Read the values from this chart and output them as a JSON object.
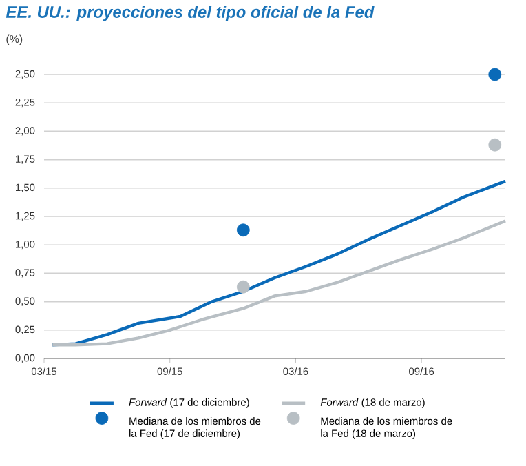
{
  "chart_data": {
    "type": "line",
    "title": "EE. UU.: proyecciones del tipo oficial de la Fed",
    "ylabel": "(%)",
    "xlim": [
      "2015-03-01",
      "2017-01-01"
    ],
    "xticks": [
      {
        "value": "2015-03-01",
        "label": "03/15"
      },
      {
        "value": "2015-09-01",
        "label": "09/15"
      },
      {
        "value": "2016-03-01",
        "label": "03/16"
      },
      {
        "value": "2016-09-01",
        "label": "09/16"
      }
    ],
    "ylim": [
      0,
      2.5
    ],
    "yticks": [
      {
        "value": 0,
        "label": "0,00"
      },
      {
        "value": 0.25,
        "label": "0,25"
      },
      {
        "value": 0.5,
        "label": "0,50"
      },
      {
        "value": 0.75,
        "label": "0,75"
      },
      {
        "value": 1,
        "label": "1,00"
      },
      {
        "value": 1.25,
        "label": "1,25"
      },
      {
        "value": 1.5,
        "label": "1,50"
      },
      {
        "value": 1.75,
        "label": "1,75"
      },
      {
        "value": 2,
        "label": "2,00"
      },
      {
        "value": 2.25,
        "label": "2,25"
      },
      {
        "value": 2.5,
        "label": "2,50"
      }
    ],
    "grid": "y",
    "legend": "bottom",
    "series": [
      {
        "name": "*Forward* (17 de diciembre)",
        "color": "#0a6ab8",
        "x": [
          "2015-03-13",
          "2015-04-16",
          "2015-06-01",
          "2015-07-16",
          "2015-09-16",
          "2015-11-01",
          "2015-12-16",
          "2016-02-01",
          "2016-03-16",
          "2016-05-01",
          "2016-06-16",
          "2016-08-01",
          "2016-09-16",
          "2016-11-01",
          "2017-01-01"
        ],
        "values": [
          0.12,
          0.13,
          0.21,
          0.31,
          0.37,
          0.5,
          0.59,
          0.71,
          0.81,
          0.92,
          1.05,
          1.17,
          1.29,
          1.42,
          1.56
        ]
      },
      {
        "name": "*Forward* (18 de marzo)",
        "color": "#b8bfc4",
        "x": [
          "2015-03-13",
          "2015-04-16",
          "2015-06-01",
          "2015-07-16",
          "2015-09-01",
          "2015-10-16",
          "2015-12-16",
          "2016-02-01",
          "2016-03-16",
          "2016-05-01",
          "2016-06-16",
          "2016-08-01",
          "2016-09-16",
          "2016-11-01",
          "2017-01-01"
        ],
        "values": [
          0.12,
          0.12,
          0.13,
          0.18,
          0.25,
          0.34,
          0.44,
          0.55,
          0.59,
          0.67,
          0.77,
          0.87,
          0.96,
          1.06,
          1.21
        ]
      },
      {
        "name": "Mediana de los miembros de la Fed (17 de diciembre)",
        "type": "scatter",
        "color": "#0a6ab8",
        "x": [
          "2015-12-16",
          "2016-12-16"
        ],
        "values": [
          1.13,
          2.5
        ]
      },
      {
        "name": "Mediana de los miembros de la Fed (18 de marzo)",
        "type": "scatter",
        "color": "#b8bfc4",
        "x": [
          "2015-12-16",
          "2016-12-16"
        ],
        "values": [
          0.63,
          1.88
        ]
      }
    ]
  }
}
